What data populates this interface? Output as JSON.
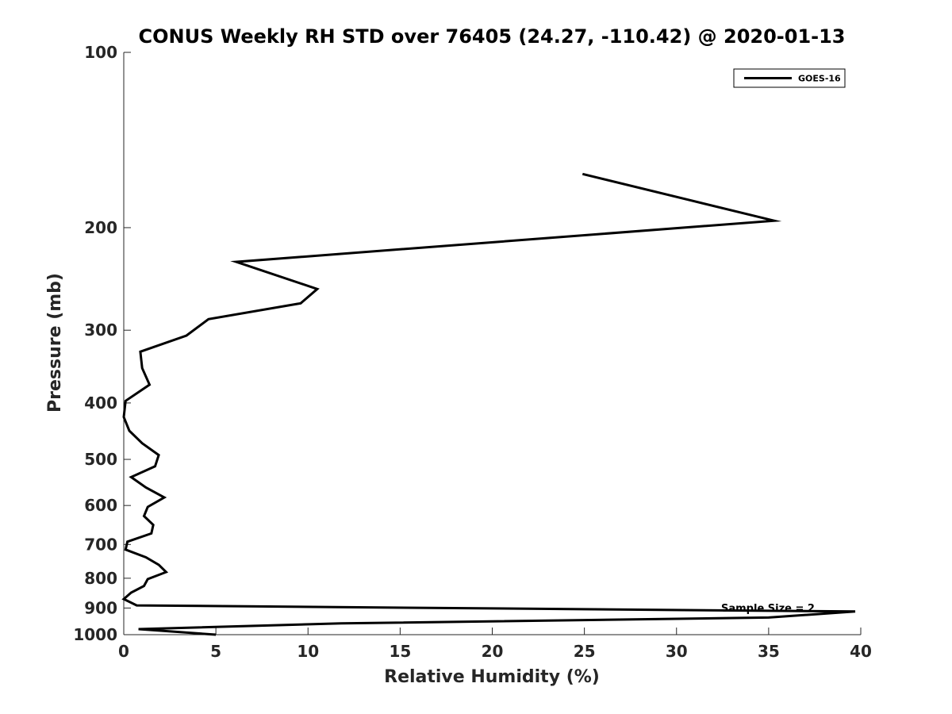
{
  "chart_data": {
    "type": "line",
    "title": "CONUS Weekly RH STD over 76405 (24.27, -110.42) @ 2020-01-13",
    "xlabel": "Relative Humidity (%)",
    "ylabel": "Pressure (mb)",
    "xlim": [
      0,
      40
    ],
    "ylim": [
      100,
      1000
    ],
    "yscale": "log",
    "yreversed": true,
    "grid": false,
    "legend_position": "top-right",
    "x_ticks": [
      "0",
      "5",
      "10",
      "15",
      "20",
      "25",
      "30",
      "35",
      "40"
    ],
    "y_ticks": [
      "100",
      "200",
      "300",
      "400",
      "500",
      "600",
      "700",
      "800",
      "900",
      "1000"
    ],
    "annotation": "Sample Size = 2",
    "series": [
      {
        "name": "GOES-16",
        "color": "#000000",
        "points": [
          [
            24.9,
            165
          ],
          [
            35.3,
            200
          ],
          [
            6.1,
            237
          ],
          [
            10.5,
            265
          ],
          [
            9.6,
            281
          ],
          [
            4.6,
            300
          ],
          [
            3.4,
            321
          ],
          [
            0.9,
            343
          ],
          [
            1.0,
            367
          ],
          [
            1.4,
            393
          ],
          [
            0.1,
            420
          ],
          [
            0.0,
            449
          ],
          [
            0.3,
            475
          ],
          [
            1.0,
            500
          ],
          [
            1.9,
            525
          ],
          [
            1.7,
            550
          ],
          [
            0.4,
            575
          ],
          [
            1.2,
            600
          ],
          [
            2.2,
            625
          ],
          [
            1.3,
            650
          ],
          [
            1.1,
            675
          ],
          [
            1.6,
            700
          ],
          [
            1.5,
            725
          ],
          [
            0.2,
            750
          ],
          [
            0.1,
            775
          ],
          [
            1.2,
            800
          ],
          [
            1.9,
            825
          ],
          [
            2.3,
            850
          ],
          [
            1.3,
            875
          ],
          [
            1.1,
            900
          ],
          [
            0.4,
            925
          ],
          [
            0.0,
            950
          ],
          [
            0.7,
            975
          ],
          [
            39.7,
            1000
          ],
          [
            35.0,
            1025
          ],
          [
            11.8,
            1050
          ],
          [
            0.8,
            1075
          ],
          [
            5.0,
            1100
          ]
        ]
      }
    ]
  }
}
